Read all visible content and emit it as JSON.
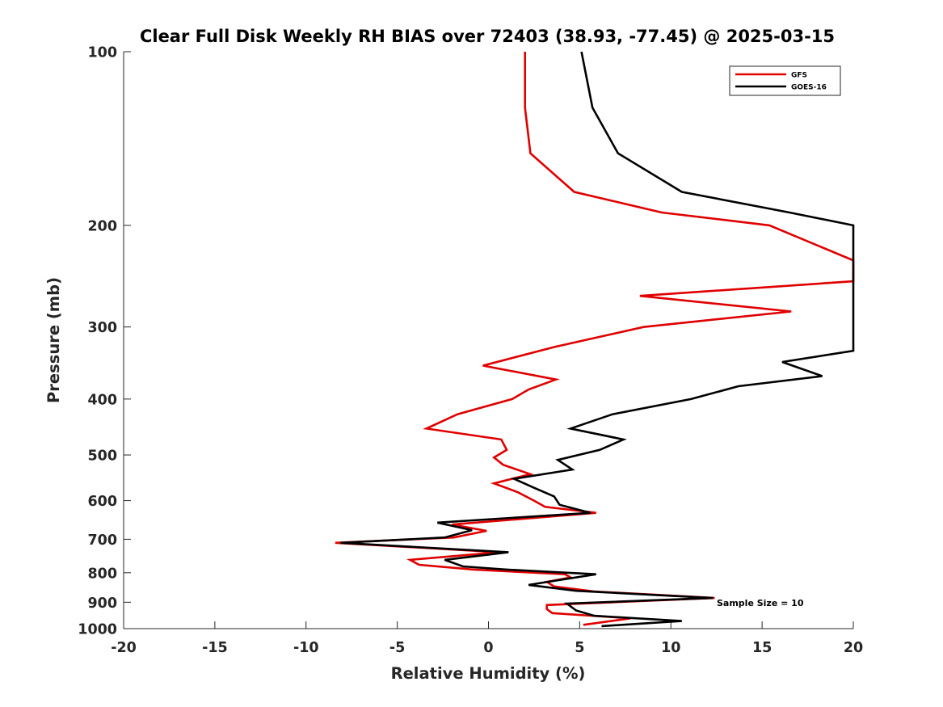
{
  "chart_data": {
    "type": "line",
    "title": "Clear Full Disk Weekly RH BIAS over 72403 (38.93, -77.45) @ 2025-03-15",
    "xlabel": "Relative Humidity (%)",
    "ylabel": "Pressure (mb)",
    "xlim": [
      -20,
      20
    ],
    "ylim": [
      1000,
      100
    ],
    "yscale": "log",
    "grid": false,
    "legend_position": "top-right",
    "x_ticks": [
      "-20",
      "-15",
      "-10",
      "-5",
      "0",
      "5",
      "10",
      "15",
      "20"
    ],
    "y_ticks": [
      "100",
      "200",
      "300",
      "400",
      "500",
      "600",
      "700",
      "800",
      "900",
      "1000"
    ],
    "annotation": "Sample Size = 10",
    "series": [
      {
        "name": "GFS",
        "color": "#e00000",
        "points": [
          [
            2.0,
            100
          ],
          [
            2.0,
            125
          ],
          [
            2.3,
            150
          ],
          [
            4.7,
            175
          ],
          [
            9.5,
            190
          ],
          [
            15.4,
            200
          ],
          [
            20.0,
            230
          ],
          [
            20.0,
            250
          ],
          [
            8.3,
            265
          ],
          [
            16.6,
            282
          ],
          [
            8.5,
            300
          ],
          [
            3.6,
            325
          ],
          [
            -0.3,
            350
          ],
          [
            3.7,
            370
          ],
          [
            2.2,
            385
          ],
          [
            1.3,
            400
          ],
          [
            -1.7,
            425
          ],
          [
            -3.4,
            450
          ],
          [
            0.7,
            470
          ],
          [
            1.0,
            490
          ],
          [
            0.3,
            505
          ],
          [
            0.8,
            520
          ],
          [
            2.3,
            540
          ],
          [
            0.3,
            560
          ],
          [
            1.6,
            580
          ],
          [
            2.5,
            600
          ],
          [
            3.1,
            615
          ],
          [
            5.9,
            630
          ],
          [
            -2.0,
            660
          ],
          [
            -0.1,
            677
          ],
          [
            -1.9,
            695
          ],
          [
            -8.4,
            710
          ],
          [
            0.6,
            737
          ],
          [
            -4.3,
            760
          ],
          [
            -3.8,
            775
          ],
          [
            -0.8,
            790
          ],
          [
            4.2,
            805
          ],
          [
            4.5,
            815
          ],
          [
            3.2,
            830
          ],
          [
            3.6,
            845
          ],
          [
            5.8,
            862
          ],
          [
            12.4,
            885
          ],
          [
            3.2,
            910
          ],
          [
            3.2,
            925
          ],
          [
            3.5,
            940
          ],
          [
            7.8,
            960
          ],
          [
            5.2,
            985
          ]
        ]
      },
      {
        "name": "GOES-16",
        "color": "#000000",
        "points": [
          [
            5.1,
            100
          ],
          [
            5.7,
            125
          ],
          [
            7.1,
            150
          ],
          [
            10.6,
            175
          ],
          [
            16.5,
            190
          ],
          [
            20.0,
            200
          ],
          [
            20.0,
            330
          ],
          [
            16.1,
            345
          ],
          [
            18.3,
            365
          ],
          [
            13.7,
            380
          ],
          [
            11.1,
            400
          ],
          [
            6.8,
            425
          ],
          [
            4.5,
            450
          ],
          [
            7.4,
            470
          ],
          [
            6.1,
            490
          ],
          [
            3.8,
            510
          ],
          [
            4.6,
            530
          ],
          [
            1.4,
            550
          ],
          [
            2.5,
            570
          ],
          [
            3.6,
            590
          ],
          [
            3.9,
            610
          ],
          [
            5.6,
            630
          ],
          [
            -2.8,
            655
          ],
          [
            -0.9,
            675
          ],
          [
            -2.4,
            695
          ],
          [
            -8.1,
            710
          ],
          [
            1.1,
            737
          ],
          [
            -2.4,
            760
          ],
          [
            -1.4,
            780
          ],
          [
            1.0,
            790
          ],
          [
            5.9,
            805
          ],
          [
            2.2,
            840
          ],
          [
            4.8,
            860
          ],
          [
            12.3,
            885
          ],
          [
            4.3,
            905
          ],
          [
            4.8,
            930
          ],
          [
            5.8,
            950
          ],
          [
            10.6,
            970
          ],
          [
            6.2,
            990
          ]
        ]
      }
    ]
  }
}
